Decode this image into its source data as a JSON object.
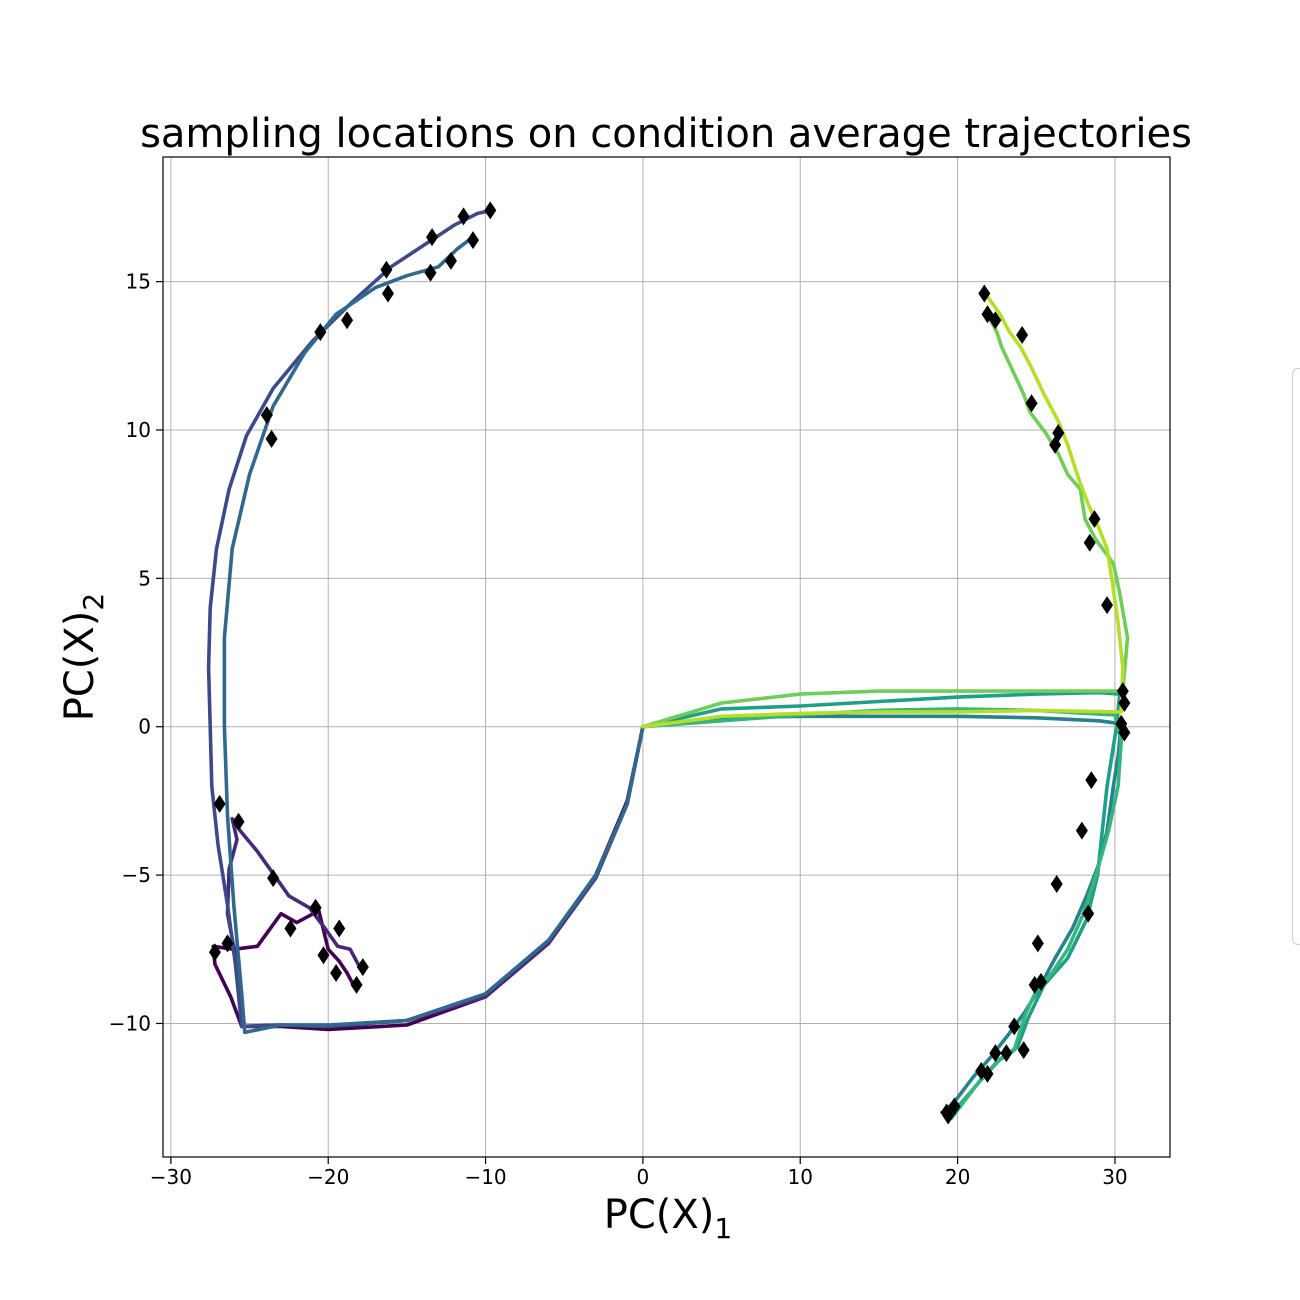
{
  "chart_data": {
    "type": "line",
    "title": "sampling locations on condition average trajectories",
    "xlabel": {
      "main": "PC(X)",
      "sub": "1"
    },
    "ylabel": {
      "main": "PC(X)",
      "sub": "2"
    },
    "xlim": [
      -30.5,
      33.5
    ],
    "ylim": [
      -14.5,
      19.2
    ],
    "xticks": [
      {
        "v": -30,
        "label": "−30"
      },
      {
        "v": -20,
        "label": "−20"
      },
      {
        "v": -10,
        "label": "−10"
      },
      {
        "v": 0,
        "label": "0"
      },
      {
        "v": 10,
        "label": "10"
      },
      {
        "v": 20,
        "label": "20"
      },
      {
        "v": 30,
        "label": "30"
      }
    ],
    "yticks": [
      {
        "v": -10,
        "label": "−10"
      },
      {
        "v": -5,
        "label": "−5"
      },
      {
        "v": 0,
        "label": "0"
      },
      {
        "v": 5,
        "label": "5"
      },
      {
        "v": 10,
        "label": "10"
      },
      {
        "v": 15,
        "label": "15"
      }
    ],
    "grid": true,
    "marker": "diamond",
    "marker_color": "#000000",
    "series": [
      {
        "color": "#440154",
        "points": [
          [
            0,
            0
          ],
          [
            -1,
            -2.5
          ],
          [
            -3,
            -5
          ],
          [
            -6,
            -7.3
          ],
          [
            -10,
            -9.1
          ],
          [
            -15,
            -10.05
          ],
          [
            -20,
            -10.2
          ],
          [
            -23,
            -10.1
          ],
          [
            -25.5,
            -10.1
          ],
          [
            -26.2,
            -9.1
          ],
          [
            -27.2,
            -8
          ],
          [
            -27.3,
            -7.4
          ],
          [
            -26,
            -7.5
          ],
          [
            -24.5,
            -7.4
          ],
          [
            -23,
            -6.3
          ],
          [
            -22,
            -6.6
          ],
          [
            -20.6,
            -6.2
          ],
          [
            -20,
            -7.5
          ],
          [
            -19.3,
            -7.9
          ],
          [
            -18.8,
            -8.3
          ],
          [
            -18.3,
            -8.8
          ]
        ],
        "markers": [
          [
            -27.2,
            -7.6
          ],
          [
            -26.4,
            -7.3
          ],
          [
            -22.4,
            -6.8
          ],
          [
            -20.3,
            -7.7
          ],
          [
            -19.5,
            -8.3
          ],
          [
            -18.2,
            -8.7
          ]
        ]
      },
      {
        "color": "#482878",
        "points": [
          [
            0,
            0
          ],
          [
            -1,
            -2.6
          ],
          [
            -3,
            -5.1
          ],
          [
            -6,
            -7.3
          ],
          [
            -10,
            -9.1
          ],
          [
            -15,
            -9.9
          ],
          [
            -20,
            -10.1
          ],
          [
            -23,
            -10.05
          ],
          [
            -25.5,
            -10.1
          ],
          [
            -25.8,
            -8
          ],
          [
            -26.4,
            -6.3
          ],
          [
            -26.3,
            -4.8
          ],
          [
            -25.8,
            -3.8
          ],
          [
            -26.1,
            -3.1
          ],
          [
            -25.6,
            -3.5
          ],
          [
            -24.5,
            -4.2
          ],
          [
            -23.3,
            -5.1
          ],
          [
            -22.5,
            -5.7
          ],
          [
            -21.2,
            -6.1
          ],
          [
            -20.2,
            -6.8
          ],
          [
            -19.4,
            -7.4
          ],
          [
            -18.6,
            -7.5
          ],
          [
            -17.9,
            -8.2
          ]
        ],
        "markers": [
          [
            -26.9,
            -2.6
          ],
          [
            -25.7,
            -3.2
          ],
          [
            -23.5,
            -5.1
          ],
          [
            -20.8,
            -6.1
          ],
          [
            -19.3,
            -6.8
          ],
          [
            -17.8,
            -8.1
          ]
        ]
      },
      {
        "color": "#3e4989",
        "points": [
          [
            0,
            0
          ],
          [
            -1,
            -2.6
          ],
          [
            -3,
            -5.1
          ],
          [
            -6,
            -7.2
          ],
          [
            -10,
            -9
          ],
          [
            -15,
            -9.9
          ],
          [
            -20,
            -10.1
          ],
          [
            -23,
            -10.05
          ],
          [
            -25.5,
            -10.1
          ],
          [
            -25.9,
            -8
          ],
          [
            -26.4,
            -6
          ],
          [
            -27,
            -4
          ],
          [
            -27.4,
            -2
          ],
          [
            -27.5,
            0
          ],
          [
            -27.6,
            2
          ],
          [
            -27.5,
            4
          ],
          [
            -27.1,
            6
          ],
          [
            -26.3,
            8
          ],
          [
            -25.2,
            9.8
          ],
          [
            -23.5,
            11.4
          ],
          [
            -21,
            13
          ],
          [
            -18.5,
            14.3
          ],
          [
            -16,
            15.5
          ],
          [
            -14,
            16.2
          ],
          [
            -12,
            16.9
          ],
          [
            -10.5,
            17.3
          ],
          [
            -9.6,
            17.4
          ]
        ],
        "markers": [
          [
            -23.9,
            10.5
          ],
          [
            -20.5,
            13.3
          ],
          [
            -16.3,
            15.4
          ],
          [
            -13.4,
            16.5
          ],
          [
            -11.4,
            17.2
          ],
          [
            -9.7,
            17.4
          ]
        ]
      },
      {
        "color": "#31688e",
        "points": [
          [
            0,
            0
          ],
          [
            -1,
            -2.6
          ],
          [
            -3,
            -5
          ],
          [
            -6,
            -7.2
          ],
          [
            -10,
            -9
          ],
          [
            -15,
            -9.9
          ],
          [
            -20,
            -10.05
          ],
          [
            -23,
            -10.05
          ],
          [
            -25.3,
            -10.3
          ],
          [
            -25.5,
            -9
          ],
          [
            -26,
            -6
          ],
          [
            -26.4,
            -3
          ],
          [
            -26.6,
            0
          ],
          [
            -26.6,
            3
          ],
          [
            -26.1,
            6
          ],
          [
            -25,
            8.5
          ],
          [
            -23.5,
            10.8
          ],
          [
            -21.5,
            12.6
          ],
          [
            -19.5,
            13.9
          ],
          [
            -17,
            14.8
          ],
          [
            -15,
            15.2
          ],
          [
            -13,
            15.5
          ],
          [
            -11.8,
            16.1
          ],
          [
            -10.8,
            16.5
          ]
        ],
        "markers": [
          [
            -23.6,
            9.7
          ],
          [
            -18.8,
            13.7
          ],
          [
            -16.2,
            14.6
          ],
          [
            -13.5,
            15.3
          ],
          [
            -12.2,
            15.7
          ],
          [
            -10.8,
            16.4
          ]
        ]
      },
      {
        "color": "#26828e",
        "points": [
          [
            0,
            0
          ],
          [
            5,
            0.3
          ],
          [
            10,
            0.35
          ],
          [
            15,
            0.35
          ],
          [
            20,
            0.35
          ],
          [
            25,
            0.3
          ],
          [
            29,
            0.2
          ],
          [
            30.4,
            0.1
          ],
          [
            30.2,
            -1
          ],
          [
            29.9,
            -2
          ],
          [
            29.5,
            -3.5
          ],
          [
            29,
            -4.6
          ],
          [
            28.2,
            -5.7
          ],
          [
            27.3,
            -6.8
          ],
          [
            26.2,
            -7.8
          ],
          [
            25.1,
            -8.9
          ],
          [
            24.3,
            -9.6
          ],
          [
            23.2,
            -10.4
          ],
          [
            22,
            -11.2
          ],
          [
            21,
            -11.8
          ],
          [
            20,
            -12.5
          ],
          [
            19.3,
            -12.9
          ]
        ],
        "markers": [
          [
            30.4,
            0.1
          ],
          [
            27.9,
            -3.5
          ],
          [
            25.1,
            -7.3
          ],
          [
            23.6,
            -10.1
          ],
          [
            21.5,
            -11.6
          ],
          [
            19.3,
            -13
          ]
        ]
      },
      {
        "color": "#1f9e89",
        "points": [
          [
            0,
            0
          ],
          [
            5,
            0.6
          ],
          [
            10,
            0.7
          ],
          [
            15,
            0.85
          ],
          [
            20,
            1
          ],
          [
            25,
            1.1
          ],
          [
            29,
            1.15
          ],
          [
            30.3,
            1.1
          ],
          [
            30.1,
            0
          ],
          [
            29.5,
            -2
          ],
          [
            29.2,
            -3.5
          ],
          [
            28.9,
            -5
          ],
          [
            28.2,
            -6.5
          ],
          [
            27,
            -7.8
          ],
          [
            25.5,
            -8.7
          ],
          [
            24.5,
            -9.8
          ],
          [
            23.8,
            -10.8
          ],
          [
            22.7,
            -11.2
          ],
          [
            21.5,
            -11.9
          ],
          [
            20.2,
            -12.7
          ],
          [
            19,
            -13
          ]
        ],
        "markers": [
          [
            28.5,
            -1.8
          ],
          [
            26.3,
            -5.3
          ],
          [
            25.3,
            -8.6
          ],
          [
            24.2,
            -10.9
          ],
          [
            22.4,
            -11
          ],
          [
            19.8,
            -12.8
          ]
        ]
      },
      {
        "color": "#35b779",
        "points": [
          [
            0,
            0
          ],
          [
            5,
            0.2
          ],
          [
            10,
            0.4
          ],
          [
            15,
            0.55
          ],
          [
            20,
            0.6
          ],
          [
            25,
            0.55
          ],
          [
            30,
            0.4
          ],
          [
            30.4,
            -0.5
          ],
          [
            30.2,
            -2
          ],
          [
            29.6,
            -3.5
          ],
          [
            28.8,
            -5
          ],
          [
            28,
            -6.3
          ],
          [
            27,
            -7.5
          ],
          [
            26,
            -8.3
          ],
          [
            25,
            -8.9
          ],
          [
            24.3,
            -9.7
          ],
          [
            23.6,
            -10.9
          ],
          [
            22.5,
            -11.3
          ],
          [
            21.6,
            -11.8
          ],
          [
            20.6,
            -12.5
          ],
          [
            19.6,
            -13.2
          ]
        ],
        "markers": [
          [
            30.6,
            -0.2
          ],
          [
            28.3,
            -6.3
          ],
          [
            24.9,
            -8.7
          ],
          [
            23.1,
            -11
          ],
          [
            21.9,
            -11.7
          ],
          [
            19.4,
            -13.1
          ]
        ]
      },
      {
        "color": "#6ece58",
        "points": [
          [
            0,
            0
          ],
          [
            5,
            0.8
          ],
          [
            10,
            1.1
          ],
          [
            15,
            1.2
          ],
          [
            20,
            1.2
          ],
          [
            25,
            1.2
          ],
          [
            29,
            1.2
          ],
          [
            30.5,
            1.2
          ],
          [
            30.8,
            3
          ],
          [
            30.3,
            4.5
          ],
          [
            29.9,
            5.5
          ],
          [
            28.8,
            6.3
          ],
          [
            28.1,
            7
          ],
          [
            27.8,
            8
          ],
          [
            27,
            8.5
          ],
          [
            26.4,
            9.2
          ],
          [
            25.6,
            9.9
          ],
          [
            24.6,
            10.6
          ],
          [
            24.2,
            11.2
          ],
          [
            23.5,
            12
          ],
          [
            22.8,
            12.8
          ],
          [
            22.5,
            13.3
          ],
          [
            22.1,
            13.7
          ],
          [
            21.9,
            14.1
          ]
        ],
        "markers": [
          [
            30.5,
            1.2
          ],
          [
            29.5,
            4.1
          ],
          [
            28.4,
            6.2
          ],
          [
            26.2,
            9.5
          ],
          [
            24.7,
            10.9
          ],
          [
            21.9,
            13.9
          ]
        ]
      },
      {
        "color": "#b5de2b",
        "points": [
          [
            0,
            0
          ],
          [
            5,
            0.35
          ],
          [
            10,
            0.45
          ],
          [
            15,
            0.5
          ],
          [
            20,
            0.5
          ],
          [
            25,
            0.55
          ],
          [
            30.4,
            0.5
          ],
          [
            30.5,
            2
          ],
          [
            30.2,
            3.5
          ],
          [
            29.8,
            5
          ],
          [
            29.5,
            6
          ],
          [
            28.9,
            6.8
          ],
          [
            28.3,
            7.5
          ],
          [
            27.6,
            8.5
          ],
          [
            27,
            9.5
          ],
          [
            26.4,
            10.3
          ],
          [
            25.5,
            11.2
          ],
          [
            24.7,
            12.1
          ],
          [
            24,
            12.8
          ],
          [
            23.3,
            13.3
          ],
          [
            22.7,
            13.9
          ],
          [
            21.9,
            14.5
          ]
        ],
        "markers": [
          [
            30.6,
            0.8
          ],
          [
            28.7,
            7
          ],
          [
            26.4,
            9.9
          ],
          [
            24.1,
            13.2
          ],
          [
            22.4,
            13.7
          ],
          [
            21.7,
            14.6
          ]
        ]
      }
    ]
  }
}
